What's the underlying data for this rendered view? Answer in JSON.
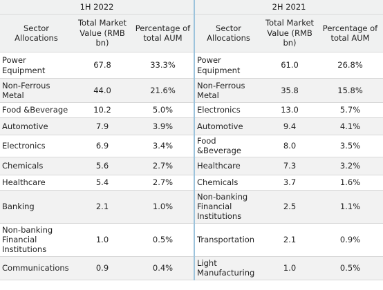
{
  "table": {
    "periods": [
      {
        "label": "1H 2022",
        "columns": [
          "Sector Allocations",
          "Total Market Value (RMB bn)",
          "Percentage of total AUM"
        ],
        "rows": [
          [
            "Power Equipment",
            "67.8",
            "33.3%"
          ],
          [
            "Non-Ferrous Metal",
            "44.0",
            "21.6%"
          ],
          [
            "Food &Beverage",
            "10.2",
            "5.0%"
          ],
          [
            "Automotive",
            "7.9",
            "3.9%"
          ],
          [
            "Electronics",
            "6.9",
            "3.4%"
          ],
          [
            "Chemicals",
            "5.6",
            "2.7%"
          ],
          [
            "Healthcare",
            "5.4",
            "2.7%"
          ],
          [
            "Banking",
            "2.1",
            "1.0%"
          ],
          [
            "Non-banking Financial Institutions",
            "1.0",
            "0.5%"
          ],
          [
            "Communications",
            "0.9",
            "0.4%"
          ]
        ]
      },
      {
        "label": "2H 2021",
        "columns": [
          "Sector Allocations",
          "Total Market Value (RMB bn)",
          "Percentage of total AUM"
        ],
        "rows": [
          [
            "Power Equipment",
            "61.0",
            "26.8%"
          ],
          [
            "Non-Ferrous Metal",
            "35.8",
            "15.8%"
          ],
          [
            "Electronics",
            "13.0",
            "5.7%"
          ],
          [
            "Automotive",
            "9.4",
            "4.1%"
          ],
          [
            "Food &Beverage",
            "8.0",
            "3.5%"
          ],
          [
            "Healthcare",
            "7.3",
            "3.2%"
          ],
          [
            "Chemicals",
            "3.7",
            "1.6%"
          ],
          [
            "Non-banking Financial Institutions",
            "2.5",
            "1.1%"
          ],
          [
            "Transportation",
            "2.1",
            "0.9%"
          ],
          [
            "Light Manufacturing",
            "1.0",
            "0.5%"
          ]
        ]
      }
    ]
  }
}
